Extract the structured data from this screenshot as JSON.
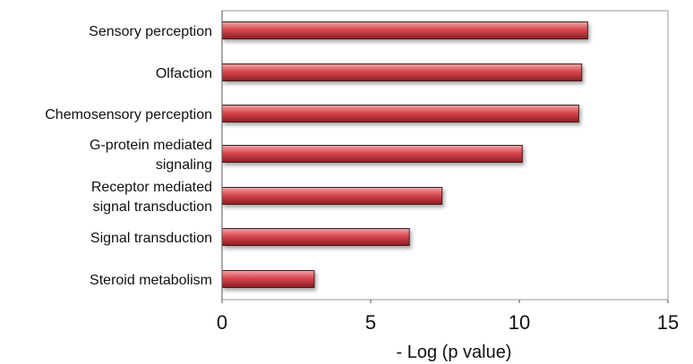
{
  "chart_data": {
    "type": "bar",
    "orientation": "horizontal",
    "categories": [
      [
        "Sensory perception"
      ],
      [
        "Olfaction"
      ],
      [
        "Chemosensory perception"
      ],
      [
        "G-protein mediated",
        "signaling"
      ],
      [
        "Receptor mediated",
        "signal transduction"
      ],
      [
        "Signal transduction"
      ],
      [
        "Steroid metabolism"
      ]
    ],
    "values": [
      12.3,
      12.1,
      12.0,
      10.1,
      7.4,
      6.3,
      3.1
    ],
    "xlabel": "- Log (p value)",
    "ylabel": "",
    "xlim": [
      0,
      15
    ],
    "xticks": [
      "0",
      "5",
      "10",
      "15"
    ],
    "grid": false,
    "legend": "none",
    "bar_color": "#d9484f",
    "bar_highlight": "#f2a6a8",
    "bar_shadow": "#8a1d24",
    "bar_border": "#3a2020"
  }
}
